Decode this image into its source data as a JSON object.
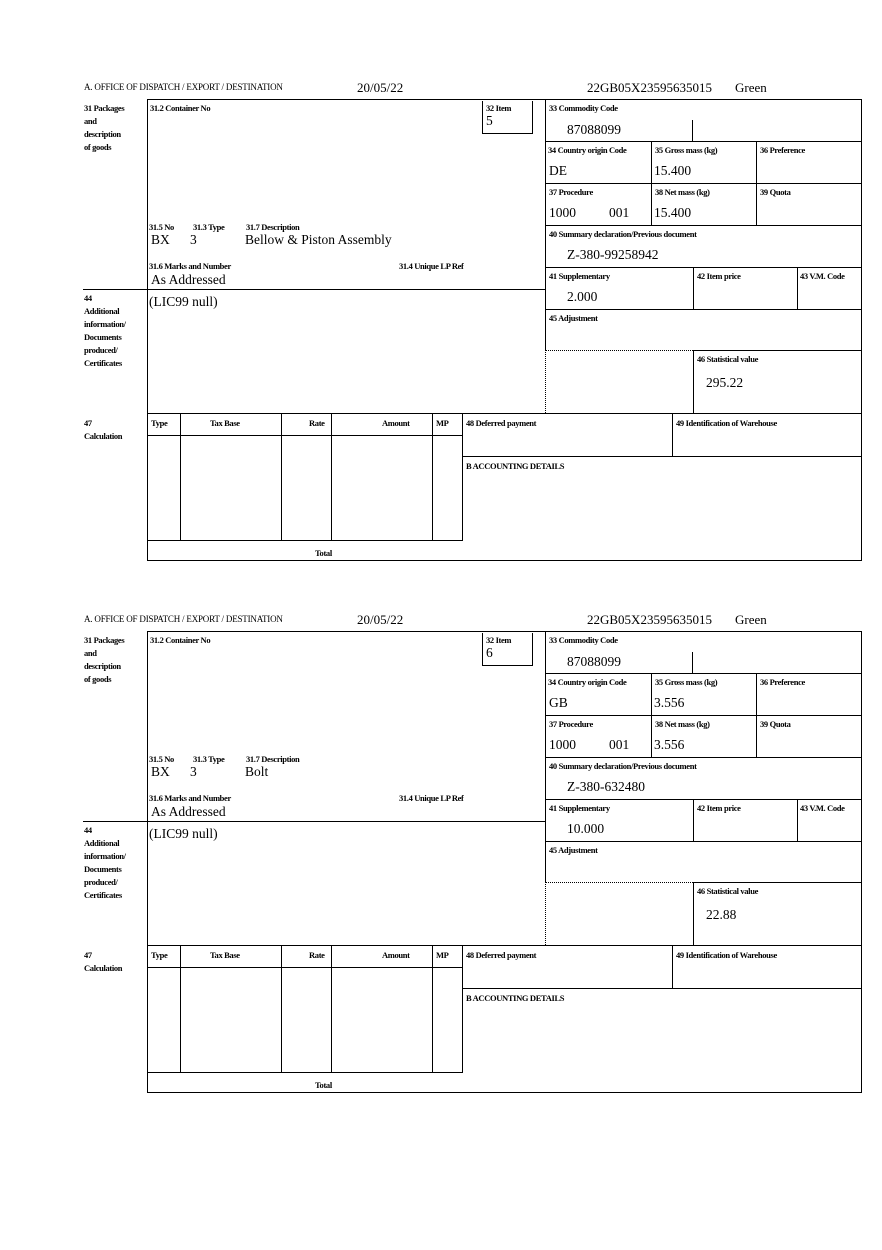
{
  "forms": [
    {
      "header": {
        "office": "A. OFFICE OF DISPATCH / EXPORT / DESTINATION",
        "date": "20/05/22",
        "reference": "22GB05X23595635015",
        "status": "Green"
      },
      "labels": {
        "packages": "31 Packages\nand\ndescription\nof goods",
        "container": "31.2 Container No",
        "item": "32 Item",
        "no": "31.5 No",
        "type": "31.3 Type",
        "description": "31.7 Description",
        "marks": "31.6 Marks and Number",
        "unique_lp": "31.4 Unique LP Ref",
        "additional": "44\nAdditional\ninformation/\nDocuments\nproduced/\nCertificates",
        "commodity": "33 Commodity Code",
        "country": "34 Country origin Code",
        "gross": "35 Gross mass (kg)",
        "preference": "36 Preference",
        "procedure": "37 Procedure",
        "net": "38 Net mass (kg)",
        "quota": "39 Quota",
        "summary": "40 Summary declaration/Previous document",
        "supplementary": "41 Supplementary",
        "item_price": "42 Item price",
        "vm_code": "43 V.M. Code",
        "adjustment": "45 Adjustment",
        "statistical": "46 Statistical value",
        "calculation": "47\nCalculation",
        "calc_cols": [
          "Type",
          "Tax Base",
          "Rate",
          "Amount",
          "MP"
        ],
        "total": "Total",
        "deferred": "48 Deferred payment",
        "warehouse": "49 Identification of Warehouse",
        "accounting": "B ACCOUNTING DETAILS"
      },
      "values": {
        "item": "5",
        "no": "BX",
        "type": "3",
        "description": "Bellow & Piston Assembly",
        "marks": "As Addressed",
        "additional": "(LIC99 null)",
        "commodity": "87088099",
        "country": "DE",
        "gross": "15.400",
        "procedure": "1000",
        "procedure_extra": "001",
        "net": "15.400",
        "summary": "Z-380-99258942",
        "supplementary": "2.000",
        "statistical": "295.22"
      }
    },
    {
      "header": {
        "office": "A. OFFICE OF DISPATCH / EXPORT / DESTINATION",
        "date": "20/05/22",
        "reference": "22GB05X23595635015",
        "status": "Green"
      },
      "labels": {
        "packages": "31 Packages\nand\ndescription\nof goods",
        "container": "31.2 Container No",
        "item": "32 Item",
        "no": "31.5 No",
        "type": "31.3 Type",
        "description": "31.7 Description",
        "marks": "31.6 Marks and Number",
        "unique_lp": "31.4 Unique LP Ref",
        "additional": "44\nAdditional\ninformation/\nDocuments\nproduced/\nCertificates",
        "commodity": "33 Commodity Code",
        "country": "34 Country origin Code",
        "gross": "35 Gross mass (kg)",
        "preference": "36 Preference",
        "procedure": "37 Procedure",
        "net": "38 Net mass (kg)",
        "quota": "39 Quota",
        "summary": "40 Summary declaration/Previous document",
        "supplementary": "41 Supplementary",
        "item_price": "42 Item price",
        "vm_code": "43 V.M. Code",
        "adjustment": "45 Adjustment",
        "statistical": "46 Statistical value",
        "calculation": "47\nCalculation",
        "calc_cols": [
          "Type",
          "Tax Base",
          "Rate",
          "Amount",
          "MP"
        ],
        "total": "Total",
        "deferred": "48 Deferred payment",
        "warehouse": "49 Identification of Warehouse",
        "accounting": "B ACCOUNTING DETAILS"
      },
      "values": {
        "item": "6",
        "no": "BX",
        "type": "3",
        "description": "Bolt",
        "marks": "As Addressed",
        "additional": "(LIC99 null)",
        "commodity": "87088099",
        "country": "GB",
        "gross": "3.556",
        "procedure": "1000",
        "procedure_extra": "001",
        "net": "3.556",
        "summary": "Z-380-632480",
        "supplementary": "10.000",
        "statistical": "22.88"
      }
    }
  ]
}
